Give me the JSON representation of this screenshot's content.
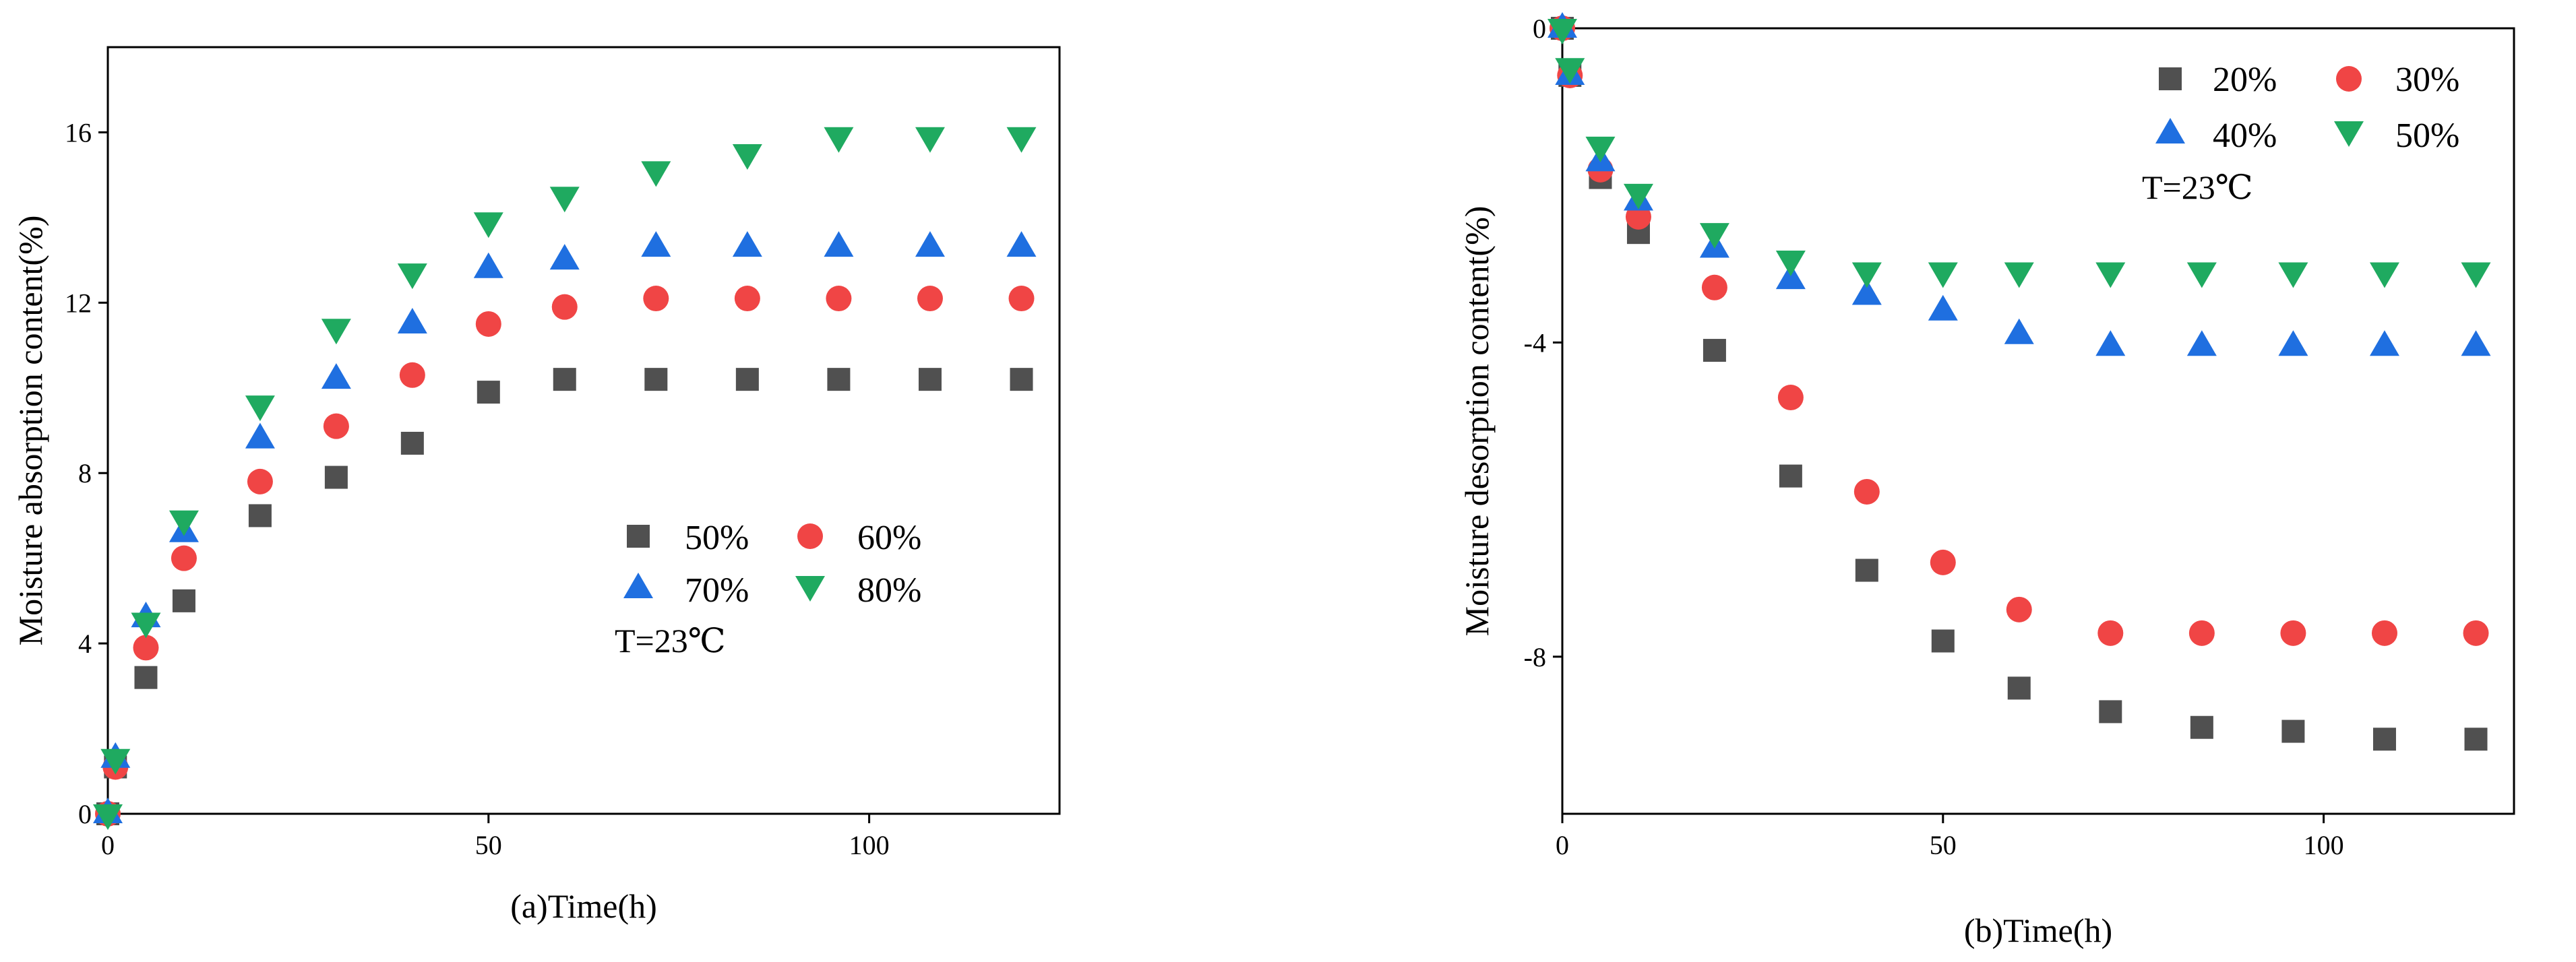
{
  "colors": {
    "s1": "#505050",
    "s2": "#f04545",
    "s3": "#1f6fe0",
    "s4": "#1faa60"
  },
  "chart_data": [
    {
      "type": "scatter",
      "id": "a",
      "xlabel": "(a)Time(h)",
      "ylabel": "Moisture absorption content(%)",
      "xlim": [
        0,
        125
      ],
      "ylim": [
        0,
        18
      ],
      "xticks": [
        0,
        50,
        100
      ],
      "yticks": [
        0,
        4,
        8,
        12,
        16
      ],
      "tick_labels_x": [
        "0",
        "50",
        "100"
      ],
      "tick_labels_y": [
        "0",
        "4",
        "8",
        "12",
        "16"
      ],
      "x": [
        0,
        1,
        5,
        10,
        20,
        30,
        40,
        50,
        60,
        72,
        84,
        96,
        108,
        120
      ],
      "series": [
        {
          "name": "50%",
          "marker": "square",
          "color_key": "s1",
          "values": [
            0,
            1.1,
            3.2,
            5.0,
            7.0,
            7.9,
            8.7,
            9.9,
            10.2,
            10.2,
            10.2,
            10.2,
            10.2,
            10.2
          ]
        },
        {
          "name": "60%",
          "marker": "circle",
          "color_key": "s2",
          "values": [
            0,
            1.1,
            3.9,
            6.0,
            7.8,
            9.1,
            10.3,
            11.5,
            11.9,
            12.1,
            12.1,
            12.1,
            12.1,
            12.1
          ]
        },
        {
          "name": "70%",
          "marker": "triangle-up",
          "color_key": "s3",
          "values": [
            0,
            1.3,
            4.6,
            6.6,
            8.8,
            10.2,
            11.5,
            12.8,
            13.0,
            13.3,
            13.3,
            13.3,
            13.3,
            13.3
          ]
        },
        {
          "name": "80%",
          "marker": "triangle-down",
          "color_key": "s4",
          "values": [
            0,
            1.3,
            4.5,
            6.9,
            9.6,
            11.4,
            12.7,
            13.9,
            14.5,
            15.1,
            15.5,
            15.9,
            15.9,
            15.9
          ]
        }
      ],
      "legend": {
        "placement": "center-right",
        "columns": 2
      },
      "annotation": "T=23℃"
    },
    {
      "type": "scatter",
      "id": "b",
      "xlabel": "(b)Time(h)",
      "ylabel": "Moisture desorption content(%)",
      "xlim": [
        0,
        125
      ],
      "ylim": [
        -10,
        0
      ],
      "xticks": [
        0,
        50,
        100
      ],
      "yticks": [
        0,
        -4,
        -8
      ],
      "tick_labels_x": [
        "0",
        "50",
        "100"
      ],
      "tick_labels_y": [
        "0",
        "-4",
        "-8"
      ],
      "x": [
        0,
        1,
        5,
        10,
        20,
        30,
        40,
        50,
        60,
        72,
        84,
        96,
        108,
        120
      ],
      "series": [
        {
          "name": "20%",
          "marker": "square",
          "color_key": "s1",
          "values": [
            0,
            -0.6,
            -1.9,
            -2.6,
            -4.1,
            -5.7,
            -6.9,
            -7.8,
            -8.4,
            -8.7,
            -8.9,
            -8.95,
            -9.05,
            -9.05
          ]
        },
        {
          "name": "30%",
          "marker": "circle",
          "color_key": "s2",
          "values": [
            0,
            -0.6,
            -1.8,
            -2.4,
            -3.3,
            -4.7,
            -5.9,
            -6.8,
            -7.4,
            -7.7,
            -7.7,
            -7.7,
            -7.7,
            -7.7
          ]
        },
        {
          "name": "40%",
          "marker": "triangle-up",
          "color_key": "s3",
          "values": [
            0,
            -0.6,
            -1.7,
            -2.2,
            -2.8,
            -3.2,
            -3.4,
            -3.6,
            -3.9,
            -4.05,
            -4.05,
            -4.05,
            -4.05,
            -4.05
          ]
        },
        {
          "name": "50%",
          "marker": "triangle-down",
          "color_key": "s4",
          "values": [
            0,
            -0.5,
            -1.5,
            -2.1,
            -2.6,
            -2.95,
            -3.1,
            -3.1,
            -3.1,
            -3.1,
            -3.1,
            -3.1,
            -3.1,
            -3.1
          ]
        }
      ],
      "legend": {
        "placement": "top-right",
        "columns": 2
      },
      "annotation": "T=23℃"
    }
  ]
}
